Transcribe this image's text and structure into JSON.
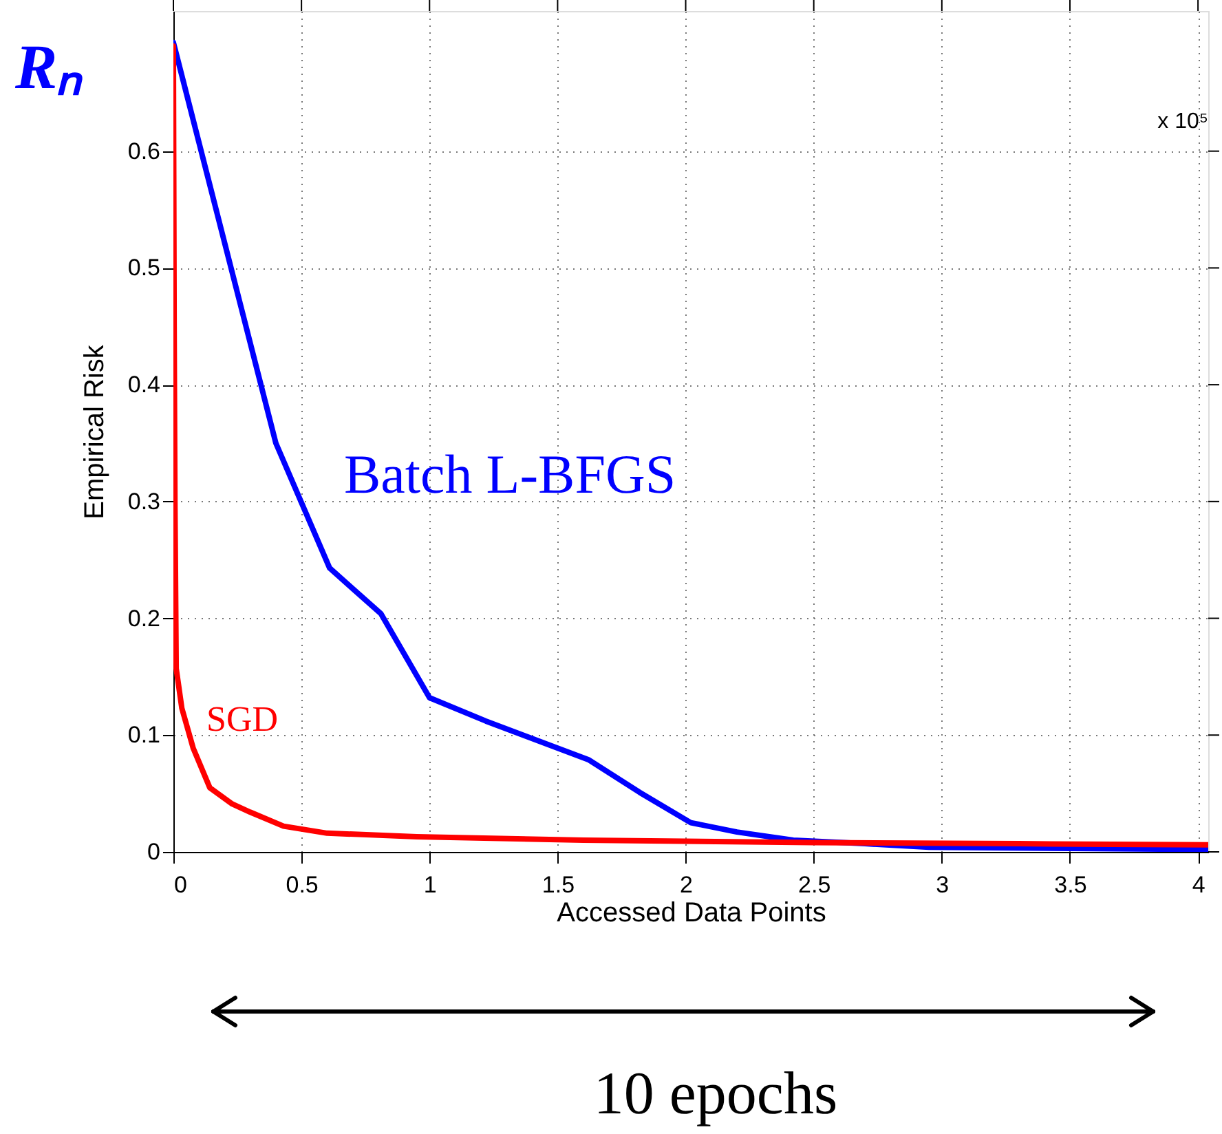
{
  "chart_data": {
    "type": "line",
    "xlabel": "Accessed Data Points",
    "ylabel": "Empirical Risk",
    "annotations": [
      "Rₙ",
      "x 10⁵",
      "10 epochs"
    ],
    "xlim": [
      0,
      4.04
    ],
    "ylim": [
      0,
      0.72
    ],
    "xticks": [
      0,
      0.5,
      1,
      1.5,
      2,
      2.5,
      3,
      3.5,
      4
    ],
    "yticks": [
      0,
      0.1,
      0.2,
      0.3,
      0.4,
      0.5,
      0.6
    ],
    "grid": true,
    "legend": false,
    "marker": "none",
    "line_style": "solid",
    "series": [
      {
        "name": "Batch L-BFGS",
        "color": "#0000ff",
        "x": [
          0,
          0.4,
          0.61,
          0.81,
          1.0,
          1.22,
          1.62,
          1.82,
          2.02,
          2.2,
          2.42,
          2.7,
          2.95,
          3.5,
          4.04
        ],
        "values": [
          0.693,
          0.35,
          0.243,
          0.204,
          0.132,
          0.112,
          0.079,
          0.051,
          0.025,
          0.017,
          0.01,
          0.007,
          0.004,
          0.003,
          0.002
        ]
      },
      {
        "name": "SGD",
        "color": "#ff0000",
        "x": [
          0,
          0.003,
          0.006,
          0.011,
          0.033,
          0.077,
          0.142,
          0.23,
          0.3,
          0.43,
          0.6,
          0.95,
          1.6,
          2.5,
          3.3,
          4.04
        ],
        "values": [
          0.69,
          0.45,
          0.3,
          0.157,
          0.123,
          0.089,
          0.055,
          0.041,
          0.034,
          0.022,
          0.016,
          0.013,
          0.01,
          0.008,
          0.007,
          0.006
        ]
      }
    ]
  }
}
